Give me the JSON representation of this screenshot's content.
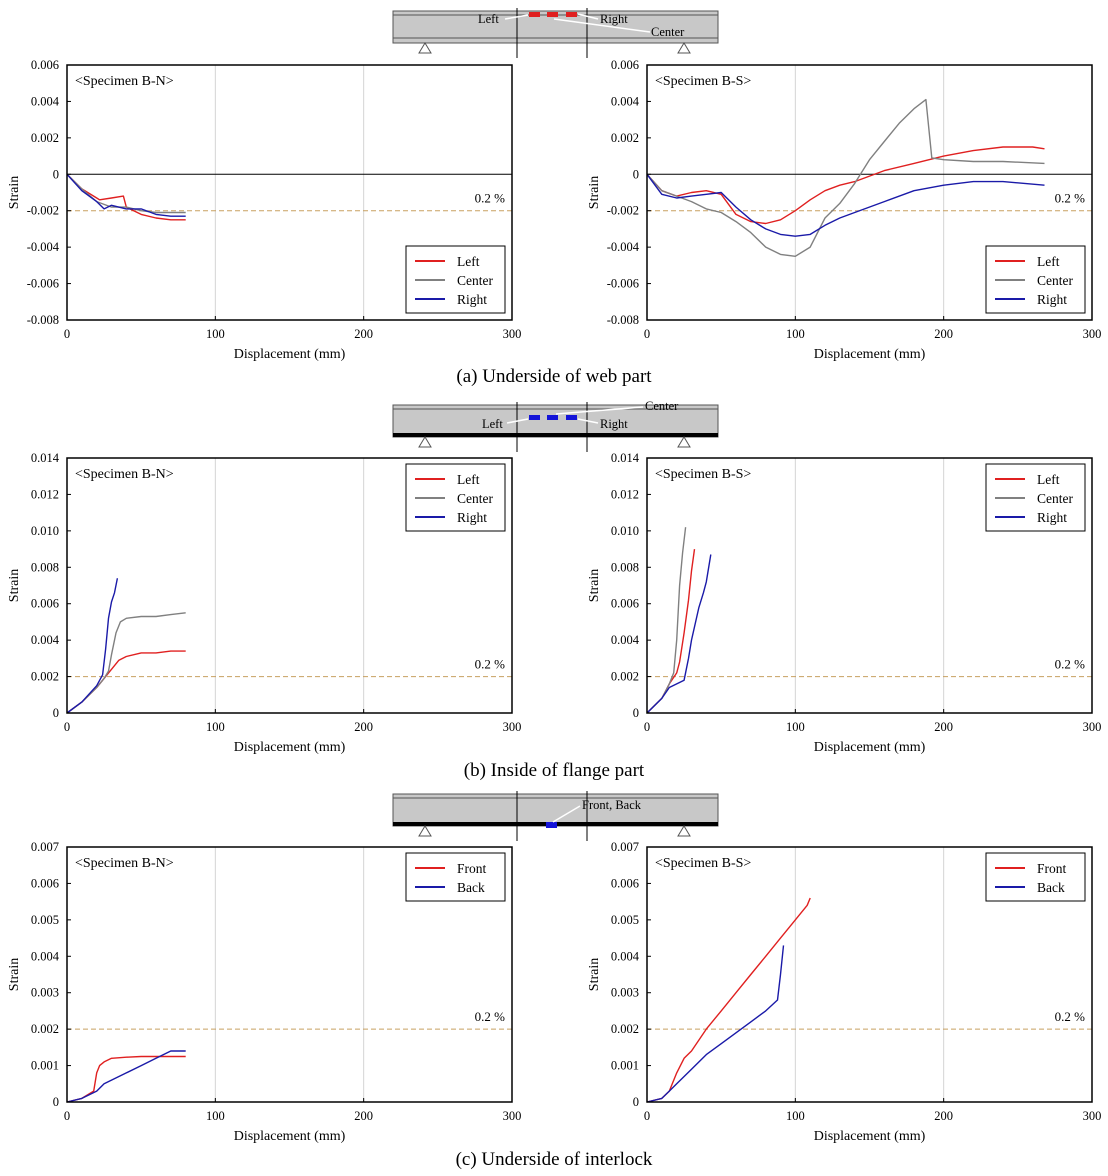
{
  "diagrams": [
    {
      "labels": [
        "Left",
        "Right",
        "Center"
      ],
      "marker_color": "#e02020"
    },
    {
      "labels": [
        "Center",
        "Left",
        "Right"
      ],
      "marker_color": "#1414d8"
    },
    {
      "labels": [
        "Front, Back"
      ],
      "marker_color": "#1414d8"
    }
  ],
  "captions": [
    "(a) Underside of web part",
    "(b) Inside of flange part",
    "(c) Underside of interlock"
  ],
  "colors": {
    "Left": "#e02020",
    "Center": "#808080",
    "Right": "#1a1aa8",
    "Front": "#e02020",
    "Back": "#1a1aa8",
    "ref": "#c8a060"
  },
  "chart_data": [
    {
      "type": "line",
      "title": "<Specimen B-N>",
      "xlabel": "Displacement (mm)",
      "ylabel": "Strain",
      "xlim": [
        0,
        300
      ],
      "ylim": [
        -0.008,
        0.006
      ],
      "xticks": [
        0,
        100,
        200,
        300
      ],
      "yticks": [
        "-0.008",
        "-0.006",
        "-0.004",
        "-0.002",
        "0",
        "0.002",
        "0.004",
        "0.006"
      ],
      "zero_line": true,
      "reference": {
        "y": -0.002,
        "label": "0.2 %"
      },
      "legend": "bottom-right",
      "series": [
        {
          "name": "Left",
          "x": [
            0,
            10,
            20,
            22,
            30,
            38,
            40,
            50,
            60,
            70,
            80
          ],
          "y": [
            0,
            -0.0008,
            -0.0013,
            -0.0014,
            -0.0013,
            -0.0012,
            -0.0018,
            -0.0022,
            -0.0024,
            -0.0025,
            -0.0025
          ]
        },
        {
          "name": "Center",
          "x": [
            0,
            10,
            20,
            30,
            40,
            50,
            60,
            70,
            80
          ],
          "y": [
            0,
            -0.0008,
            -0.0015,
            -0.0018,
            -0.0018,
            -0.002,
            -0.0021,
            -0.0021,
            -0.0021
          ]
        },
        {
          "name": "Right",
          "x": [
            0,
            10,
            20,
            25,
            30,
            40,
            50,
            60,
            70,
            80
          ],
          "y": [
            0,
            -0.0009,
            -0.0015,
            -0.0019,
            -0.0017,
            -0.0019,
            -0.0019,
            -0.0022,
            -0.0023,
            -0.0023
          ]
        }
      ]
    },
    {
      "type": "line",
      "title": "<Specimen B-S>",
      "xlabel": "Displacement (mm)",
      "ylabel": "Strain",
      "xlim": [
        0,
        300
      ],
      "ylim": [
        -0.008,
        0.006
      ],
      "xticks": [
        0,
        100,
        200,
        300
      ],
      "yticks": [
        "-0.008",
        "-0.006",
        "-0.004",
        "-0.002",
        "0",
        "0.002",
        "0.004",
        "0.006"
      ],
      "zero_line": true,
      "reference": {
        "y": -0.002,
        "label": "0.2 %"
      },
      "legend": "bottom-right",
      "series": [
        {
          "name": "Left",
          "x": [
            0,
            10,
            20,
            30,
            40,
            50,
            60,
            70,
            80,
            90,
            100,
            110,
            120,
            130,
            140,
            160,
            180,
            200,
            220,
            240,
            260,
            268
          ],
          "y": [
            0,
            -0.0009,
            -0.0012,
            -0.001,
            -0.0009,
            -0.0011,
            -0.0022,
            -0.0026,
            -0.0027,
            -0.0025,
            -0.002,
            -0.0014,
            -0.0009,
            -0.0006,
            -0.0004,
            0.0002,
            0.0006,
            0.001,
            0.0013,
            0.0015,
            0.0015,
            0.0014
          ]
        },
        {
          "name": "Center",
          "x": [
            0,
            10,
            20,
            30,
            40,
            50,
            60,
            70,
            80,
            90,
            100,
            110,
            120,
            130,
            140,
            150,
            160,
            170,
            180,
            188,
            192,
            200,
            220,
            240,
            268
          ],
          "y": [
            0,
            -0.0009,
            -0.0012,
            -0.0015,
            -0.0019,
            -0.0021,
            -0.0026,
            -0.0032,
            -0.004,
            -0.0044,
            -0.0045,
            -0.004,
            -0.0024,
            -0.0016,
            -0.0005,
            0.0008,
            0.0018,
            0.0028,
            0.0036,
            0.0041,
            0.0009,
            0.0008,
            0.0007,
            0.0007,
            0.0006
          ]
        },
        {
          "name": "Right",
          "x": [
            0,
            10,
            20,
            30,
            40,
            50,
            60,
            70,
            80,
            90,
            100,
            110,
            120,
            130,
            140,
            160,
            180,
            200,
            220,
            240,
            268
          ],
          "y": [
            0,
            -0.0011,
            -0.0013,
            -0.0012,
            -0.0011,
            -0.001,
            -0.0018,
            -0.0025,
            -0.003,
            -0.0033,
            -0.0034,
            -0.0033,
            -0.0028,
            -0.0024,
            -0.0021,
            -0.0015,
            -0.0009,
            -0.0006,
            -0.0004,
            -0.0004,
            -0.0006
          ]
        }
      ]
    },
    {
      "type": "line",
      "title": "<Specimen B-N>",
      "xlabel": "Displacement (mm)",
      "ylabel": "Strain",
      "xlim": [
        0,
        300
      ],
      "ylim": [
        0,
        0.014
      ],
      "xticks": [
        0,
        100,
        200,
        300
      ],
      "yticks": [
        "0",
        "0.002",
        "0.004",
        "0.006",
        "0.008",
        "0.010",
        "0.012",
        "0.014"
      ],
      "zero_line": false,
      "reference": {
        "y": 0.002,
        "label": "0.2 %"
      },
      "legend": "top-right",
      "series": [
        {
          "name": "Left",
          "x": [
            0,
            10,
            20,
            25,
            30,
            35,
            40,
            50,
            60,
            70,
            80
          ],
          "y": [
            0,
            0.0006,
            0.0014,
            0.0019,
            0.0024,
            0.0029,
            0.0031,
            0.0033,
            0.0033,
            0.0034,
            0.0034
          ]
        },
        {
          "name": "Center",
          "x": [
            0,
            10,
            20,
            25,
            28,
            30,
            33,
            36,
            40,
            50,
            60,
            70,
            80
          ],
          "y": [
            0,
            0.0006,
            0.0014,
            0.0019,
            0.0023,
            0.0032,
            0.0044,
            0.005,
            0.0052,
            0.0053,
            0.0053,
            0.0054,
            0.0055
          ]
        },
        {
          "name": "Right",
          "x": [
            0,
            10,
            20,
            24,
            26,
            28,
            30,
            32,
            34
          ],
          "y": [
            0,
            0.0006,
            0.0015,
            0.0021,
            0.0035,
            0.0052,
            0.0061,
            0.0066,
            0.0074
          ]
        }
      ]
    },
    {
      "type": "line",
      "title": "<Specimen B-S>",
      "xlabel": "Displacement (mm)",
      "ylabel": "Strain",
      "xlim": [
        0,
        300
      ],
      "ylim": [
        0,
        0.014
      ],
      "xticks": [
        0,
        100,
        200,
        300
      ],
      "yticks": [
        "0",
        "0.002",
        "0.004",
        "0.006",
        "0.008",
        "0.010",
        "0.012",
        "0.014"
      ],
      "zero_line": false,
      "reference": {
        "y": 0.002,
        "label": "0.2 %"
      },
      "legend": "top-right",
      "series": [
        {
          "name": "Left",
          "x": [
            0,
            10,
            15,
            20,
            22,
            25,
            28,
            30,
            32
          ],
          "y": [
            0,
            0.0008,
            0.0016,
            0.0022,
            0.0028,
            0.0044,
            0.0062,
            0.0078,
            0.009
          ]
        },
        {
          "name": "Center",
          "x": [
            0,
            10,
            15,
            18,
            20,
            22,
            24,
            26
          ],
          "y": [
            0,
            0.0008,
            0.0016,
            0.0022,
            0.004,
            0.007,
            0.0088,
            0.0102
          ]
        },
        {
          "name": "Right",
          "x": [
            0,
            10,
            15,
            20,
            25,
            28,
            30,
            35,
            38,
            40,
            43
          ],
          "y": [
            0,
            0.0008,
            0.0014,
            0.0016,
            0.0018,
            0.003,
            0.004,
            0.0058,
            0.0066,
            0.0072,
            0.0087
          ]
        }
      ]
    },
    {
      "type": "line",
      "title": "<Specimen B-N>",
      "xlabel": "Displacement (mm)",
      "ylabel": "Strain",
      "xlim": [
        0,
        300
      ],
      "ylim": [
        0,
        0.007
      ],
      "xticks": [
        0,
        100,
        200,
        300
      ],
      "yticks": [
        "0",
        "0.001",
        "0.002",
        "0.003",
        "0.004",
        "0.005",
        "0.006",
        "0.007"
      ],
      "zero_line": false,
      "reference": {
        "y": 0.002,
        "label": "0.2 %"
      },
      "legend": "top-right",
      "series": [
        {
          "name": "Front",
          "x": [
            0,
            10,
            18,
            20,
            22,
            25,
            30,
            40,
            50,
            60,
            70,
            80
          ],
          "y": [
            0,
            0.0001,
            0.0003,
            0.0008,
            0.001,
            0.0011,
            0.0012,
            0.00123,
            0.00125,
            0.00125,
            0.00125,
            0.00125
          ]
        },
        {
          "name": "Back",
          "x": [
            0,
            10,
            20,
            25,
            30,
            40,
            50,
            60,
            70,
            80
          ],
          "y": [
            0,
            0.0001,
            0.0003,
            0.0005,
            0.0006,
            0.0008,
            0.001,
            0.0012,
            0.0014,
            0.0014
          ]
        }
      ]
    },
    {
      "type": "line",
      "title": "<Specimen B-S>",
      "xlabel": "Displacement (mm)",
      "ylabel": "Strain",
      "xlim": [
        0,
        300
      ],
      "ylim": [
        0,
        0.007
      ],
      "xticks": [
        0,
        100,
        200,
        300
      ],
      "yticks": [
        "0",
        "0.001",
        "0.002",
        "0.003",
        "0.004",
        "0.005",
        "0.006",
        "0.007"
      ],
      "zero_line": false,
      "reference": {
        "y": 0.002,
        "label": "0.2 %"
      },
      "legend": "top-right",
      "series": [
        {
          "name": "Front",
          "x": [
            0,
            10,
            15,
            20,
            25,
            30,
            40,
            50,
            60,
            70,
            80,
            90,
            100,
            108,
            110
          ],
          "y": [
            0,
            0.0001,
            0.0003,
            0.0008,
            0.0012,
            0.0014,
            0.002,
            0.0025,
            0.003,
            0.0035,
            0.004,
            0.0045,
            0.005,
            0.0054,
            0.0056
          ]
        },
        {
          "name": "Back",
          "x": [
            0,
            10,
            15,
            20,
            30,
            40,
            50,
            60,
            70,
            80,
            88,
            90,
            92
          ],
          "y": [
            0,
            0.0001,
            0.0003,
            0.0005,
            0.0009,
            0.0013,
            0.0016,
            0.0019,
            0.0022,
            0.0025,
            0.0028,
            0.0035,
            0.0043
          ]
        }
      ]
    }
  ]
}
